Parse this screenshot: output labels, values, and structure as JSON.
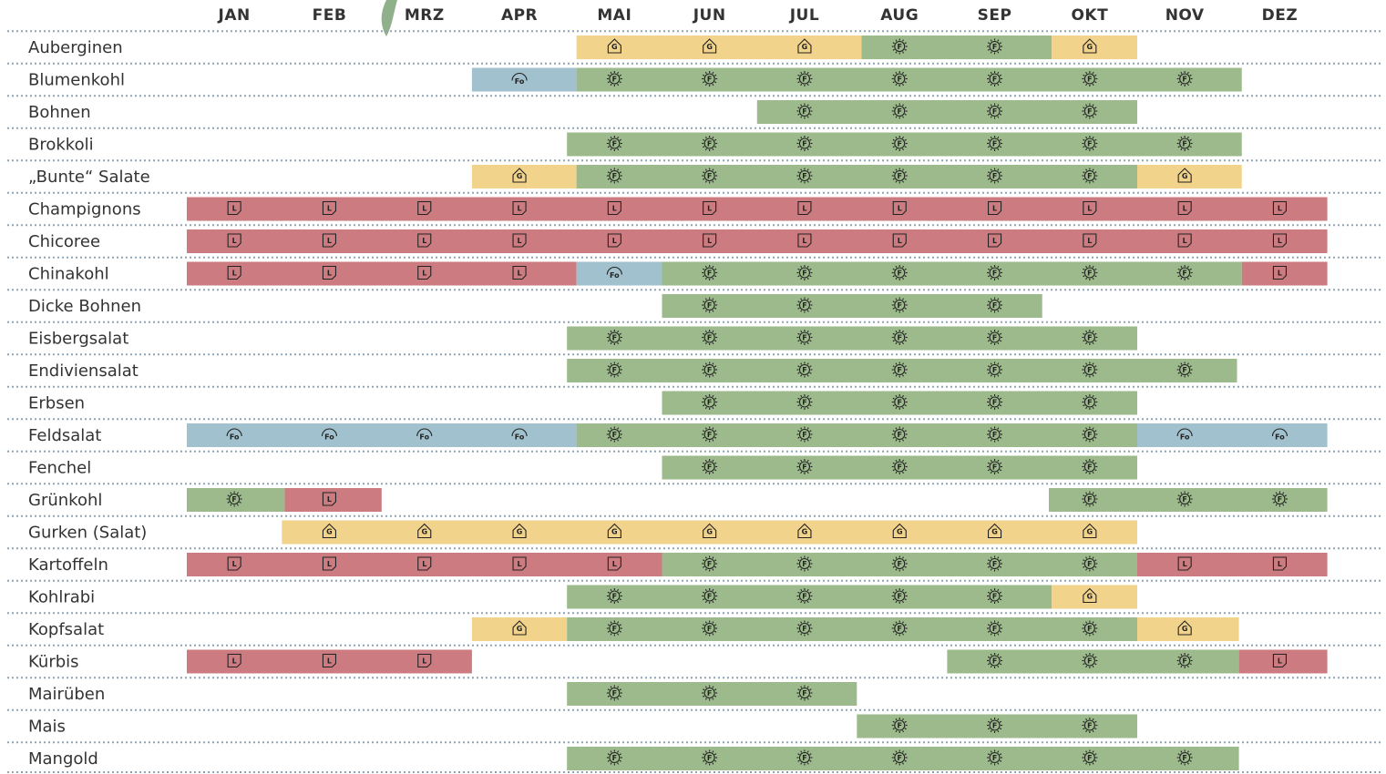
{
  "months": [
    "JAN",
    "FEB",
    "MRZ",
    "APR",
    "MAI",
    "JUN",
    "JUL",
    "AUG",
    "SEP",
    "OKT",
    "NOV",
    "DEZ"
  ],
  "kinds": {
    "G": {
      "glyph": "G",
      "color": "#f2d38b"
    },
    "F": {
      "glyph": "F",
      "color": "#9cba8b"
    },
    "L": {
      "glyph": "L",
      "color": "#cc7c80"
    },
    "Fo": {
      "glyph": "Fo",
      "color": "#a0c1cd"
    }
  },
  "rows": [
    {
      "label": "Auberginen",
      "segments": [
        {
          "kind": "G",
          "from": 4.1,
          "to": 7.1
        },
        {
          "kind": "F",
          "from": 7.1,
          "to": 9.1
        },
        {
          "kind": "G",
          "from": 9.1,
          "to": 10
        }
      ]
    },
    {
      "label": "Blumenkohl",
      "segments": [
        {
          "kind": "Fo",
          "from": 3,
          "to": 4.1
        },
        {
          "kind": "F",
          "from": 4.1,
          "to": 11.1
        }
      ]
    },
    {
      "label": "Bohnen",
      "segments": [
        {
          "kind": "F",
          "from": 6,
          "to": 10
        }
      ]
    },
    {
      "label": "Brokkoli",
      "segments": [
        {
          "kind": "F",
          "from": 4,
          "to": 11.1
        }
      ]
    },
    {
      "label": "„Bunte“ Salate",
      "segments": [
        {
          "kind": "G",
          "from": 3,
          "to": 4.1
        },
        {
          "kind": "F",
          "from": 4.1,
          "to": 10
        },
        {
          "kind": "G",
          "from": 10,
          "to": 11.1
        }
      ]
    },
    {
      "label": "Champignons",
      "segments": [
        {
          "kind": "L",
          "from": 0,
          "to": 12
        }
      ]
    },
    {
      "label": "Chicoree",
      "segments": [
        {
          "kind": "L",
          "from": 0,
          "to": 12
        }
      ]
    },
    {
      "label": "Chinakohl",
      "segments": [
        {
          "kind": "L",
          "from": 0,
          "to": 4.1
        },
        {
          "kind": "Fo",
          "from": 4.1,
          "to": 5
        },
        {
          "kind": "F",
          "from": 5,
          "to": 11.1
        },
        {
          "kind": "L",
          "from": 11.1,
          "to": 12
        }
      ]
    },
    {
      "label": "Dicke Bohnen",
      "segments": [
        {
          "kind": "F",
          "from": 5,
          "to": 9
        }
      ]
    },
    {
      "label": "Eisbergsalat",
      "segments": [
        {
          "kind": "F",
          "from": 4,
          "to": 10
        }
      ]
    },
    {
      "label": "Endiviensalat",
      "segments": [
        {
          "kind": "F",
          "from": 4,
          "to": 11.05
        }
      ]
    },
    {
      "label": "Erbsen",
      "segments": [
        {
          "kind": "F",
          "from": 5,
          "to": 10
        }
      ]
    },
    {
      "label": "Feldsalat",
      "segments": [
        {
          "kind": "Fo",
          "from": 0,
          "to": 4.1
        },
        {
          "kind": "F",
          "from": 4.1,
          "to": 10
        },
        {
          "kind": "Fo",
          "from": 10,
          "to": 12
        }
      ]
    },
    {
      "label": "Fenchel",
      "segments": [
        {
          "kind": "F",
          "from": 5,
          "to": 10
        }
      ]
    },
    {
      "label": "Grünkohl",
      "segments": [
        {
          "kind": "F",
          "from": 0,
          "to": 1.03
        },
        {
          "kind": "L",
          "from": 1.03,
          "to": 2.05
        },
        {
          "kind": "F",
          "from": 9.07,
          "to": 12
        }
      ]
    },
    {
      "label": "Gurken (Salat)",
      "segments": [
        {
          "kind": "G",
          "from": 1,
          "to": 10
        }
      ]
    },
    {
      "label": "Kartoffeln",
      "segments": [
        {
          "kind": "L",
          "from": 0,
          "to": 5
        },
        {
          "kind": "F",
          "from": 5,
          "to": 10
        },
        {
          "kind": "L",
          "from": 10,
          "to": 12
        }
      ]
    },
    {
      "label": "Kohlrabi",
      "segments": [
        {
          "kind": "F",
          "from": 4,
          "to": 9.1
        },
        {
          "kind": "G",
          "from": 9.1,
          "to": 10
        }
      ]
    },
    {
      "label": "Kopfsalat",
      "segments": [
        {
          "kind": "G",
          "from": 3,
          "to": 4
        },
        {
          "kind": "F",
          "from": 4,
          "to": 10
        },
        {
          "kind": "G",
          "from": 10,
          "to": 11.07
        }
      ]
    },
    {
      "label": "Kürbis",
      "segments": [
        {
          "kind": "L",
          "from": 0,
          "to": 3
        },
        {
          "kind": "F",
          "from": 8,
          "to": 11.07
        },
        {
          "kind": "L",
          "from": 11.07,
          "to": 12
        }
      ]
    },
    {
      "label": "Mairüben",
      "segments": [
        {
          "kind": "F",
          "from": 4,
          "to": 7.05
        }
      ]
    },
    {
      "label": "Mais",
      "segments": [
        {
          "kind": "F",
          "from": 7.05,
          "to": 10
        }
      ]
    },
    {
      "label": "Mangold",
      "segments": [
        {
          "kind": "F",
          "from": 4,
          "to": 11.07
        }
      ]
    }
  ]
}
